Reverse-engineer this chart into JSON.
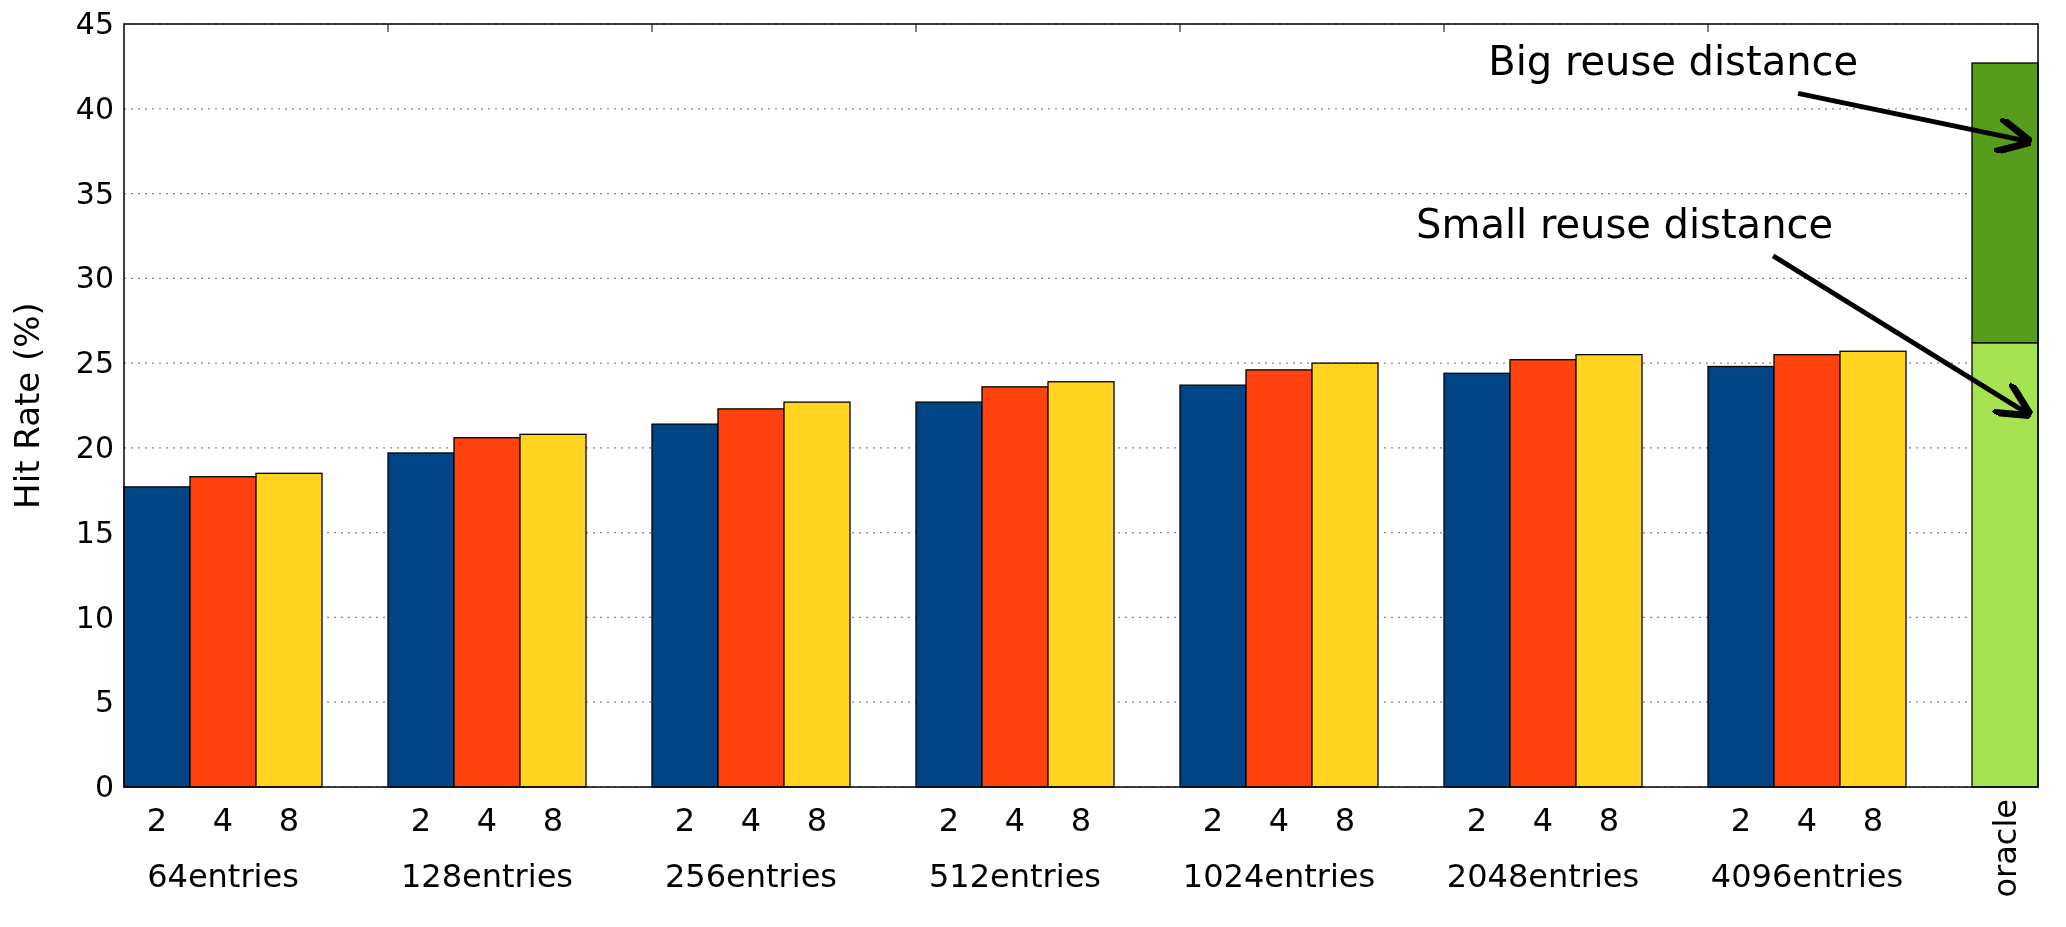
{
  "chart_data": {
    "type": "bar",
    "ylabel": "Hit Rate (%)",
    "stacked": true,
    "grid": "y",
    "categories": [
      "2",
      "4",
      "8",
      "2",
      "4",
      "8",
      "2",
      "4",
      "8",
      "2",
      "4",
      "8",
      "2",
      "4",
      "8",
      "2",
      "4",
      "8",
      "2",
      "4",
      "8",
      "oracle"
    ],
    "series": [
      {
        "color": "#004586",
        "values": [
          17.7,
          null,
          null,
          19.7,
          null,
          null,
          21.4,
          null,
          null,
          22.7,
          null,
          null,
          23.7,
          null,
          null,
          24.4,
          null,
          null,
          24.8,
          null,
          null,
          null
        ]
      },
      {
        "color": "#ff420e",
        "values": [
          null,
          18.3,
          null,
          null,
          20.6,
          null,
          null,
          22.3,
          null,
          null,
          23.6,
          null,
          null,
          24.6,
          null,
          null,
          25.2,
          null,
          null,
          25.5,
          null,
          null
        ]
      },
      {
        "color": "#ffd320",
        "values": [
          null,
          null,
          18.5,
          null,
          null,
          20.8,
          null,
          null,
          22.7,
          null,
          null,
          23.9,
          null,
          null,
          25.0,
          null,
          null,
          25.5,
          null,
          null,
          25.7,
          null
        ]
      },
      {
        "color": "#a6e352",
        "values": [
          null,
          null,
          null,
          null,
          null,
          null,
          null,
          null,
          null,
          null,
          null,
          null,
          null,
          null,
          null,
          null,
          null,
          null,
          null,
          null,
          null,
          26.2
        ]
      },
      {
        "color": "#579d1c",
        "values": [
          null,
          null,
          null,
          null,
          null,
          null,
          null,
          null,
          null,
          null,
          null,
          null,
          null,
          null,
          null,
          null,
          null,
          null,
          null,
          null,
          null,
          16.5
        ]
      }
    ],
    "ylim": [
      0,
      45
    ],
    "yticks": [
      0,
      5,
      10,
      15,
      20,
      25,
      30,
      35,
      40,
      45
    ],
    "annotations": [
      "64entries",
      "128entries",
      "256entries",
      "512entries",
      "1024entries",
      "2048entries",
      "4096entries",
      "Big reuse distance",
      "Small reuse distance"
    ]
  }
}
